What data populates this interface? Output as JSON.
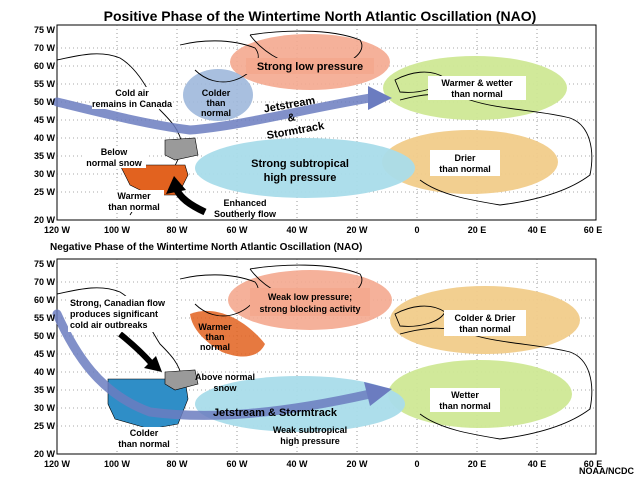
{
  "title_positive": "Positive Phase of the Wintertime North Atlantic Oscillation (NAO)",
  "title_negative": "Negative Phase of the Wintertime North Atlantic Oscillation (NAO)",
  "credit": "NOAA/NCDC",
  "axes": {
    "y_ticks": [
      "75 W",
      "70 W",
      "65 W",
      "60 W",
      "55 W",
      "50 W",
      "45 W",
      "40 W",
      "35 W",
      "30 W",
      "25 W",
      "20 W"
    ],
    "x_ticks": [
      "120 W",
      "100 W",
      "80 W",
      "60 W",
      "40 W",
      "20 W",
      "0",
      "20 E",
      "40 E",
      "60 E"
    ]
  },
  "colors": {
    "low_pressure": "#f4a98f",
    "high_pressure": "#a9dcea",
    "warm_wet": "#cfe895",
    "dry": "#f1cc8a",
    "cold_blue": "#9fb8dc",
    "arrow": "#6b7cc0",
    "warm_region": "#e2621f",
    "cold_region": "#2f8ec7",
    "land_gray": "#9a9a9a"
  },
  "positive": {
    "low": "Strong low pressure",
    "high_l1": "Strong subtropical",
    "high_l2": "high pressure",
    "jet_l1": "Jetstream",
    "jet_l2": "&",
    "jet_l3": "Stormtrack",
    "eu_warm_l1": "Warmer & wetter",
    "eu_warm_l2": "than normal",
    "eu_dry_l1": "Drier",
    "eu_dry_l2": "than normal",
    "cold_canada_l1": "Cold air",
    "cold_canada_l2": "remains in Canada",
    "colder_l1": "Colder",
    "colder_l2": "than",
    "colder_l3": "normal",
    "below_snow_l1": "Below",
    "below_snow_l2": "normal snow",
    "warmer_l1": "Warmer",
    "warmer_l2": "than normal",
    "south_l1": "Enhanced",
    "south_l2": "Southerly flow"
  },
  "negative": {
    "low_l1": "Weak low pressure;",
    "low_l2": "strong blocking activity",
    "high_l1": "Weak subtropical",
    "high_l2": "high pressure",
    "jet": "Jetstream & Stormtrack",
    "eu_cold_l1": "Colder & Drier",
    "eu_cold_l2": "than normal",
    "eu_wet_l1": "Wetter",
    "eu_wet_l2": "than normal",
    "flow_l1": "Strong, Canadian flow",
    "flow_l2": "produces significant",
    "flow_l3": "cold air outbreaks",
    "warmer_l1": "Warmer",
    "warmer_l2": "than",
    "warmer_l3": "normal",
    "above_snow_l1": "Above normal",
    "above_snow_l2": "snow",
    "colder_l1": "Colder",
    "colder_l2": "than normal"
  }
}
